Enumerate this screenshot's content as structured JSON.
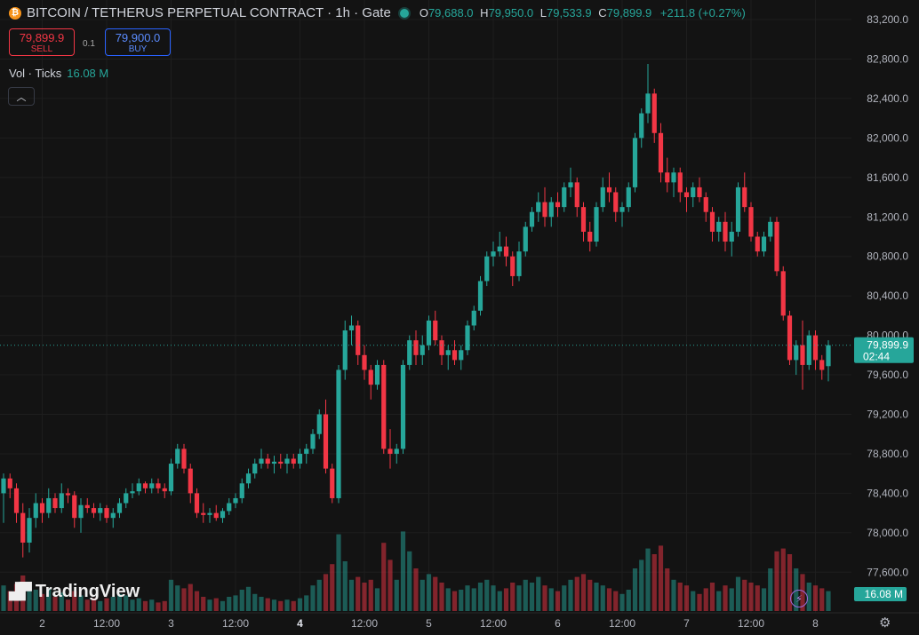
{
  "header": {
    "title": "BITCOIN / TETHERUS PERPETUAL CONTRACT · 1h · Gate",
    "coin_icon": "bitcoin-icon",
    "o_label": "O",
    "o": "79,688.0",
    "h_label": "H",
    "h": "79,950.0",
    "l_label": "L",
    "l": "79,533.9",
    "c_label": "C",
    "c": "79,899.9",
    "change": "+211.8 (+0.27%)"
  },
  "trade": {
    "sell_price": "79,899.9",
    "sell_label": "SELL",
    "spread": "0.1",
    "buy_price": "79,900.0",
    "buy_label": "BUY"
  },
  "volume_legend": {
    "label": "Vol · Ticks",
    "value": "16.08 M"
  },
  "price_tag": {
    "price": "79,899.9",
    "countdown": "02:44"
  },
  "volume_tag": "16.08 M",
  "logo_text": "TradingView",
  "colors": {
    "up": "#26a69a",
    "down": "#f23645",
    "background": "#131313"
  },
  "chart_data": {
    "type": "candlestick",
    "interval": "1h",
    "yticks": [
      "83,200.0",
      "82,800.0",
      "82,400.0",
      "82,000.0",
      "81,600.0",
      "81,200.0",
      "80,800.0",
      "80,400.0",
      "80,000.0",
      "79,600.0",
      "79,200.0",
      "78,800.0",
      "78,400.0",
      "78,000.0",
      "77,600.0"
    ],
    "ylim": [
      77250,
      83350
    ],
    "xticks": [
      {
        "label": "2",
        "bold": false
      },
      {
        "label": "12:00",
        "bold": false
      },
      {
        "label": "3",
        "bold": false
      },
      {
        "label": "12:00",
        "bold": false
      },
      {
        "label": "4",
        "bold": true
      },
      {
        "label": "12:00",
        "bold": false
      },
      {
        "label": "5",
        "bold": false
      },
      {
        "label": "12:00",
        "bold": false
      },
      {
        "label": "6",
        "bold": false
      },
      {
        "label": "12:00",
        "bold": false
      },
      {
        "label": "7",
        "bold": false
      },
      {
        "label": "12:00",
        "bold": false
      },
      {
        "label": "8",
        "bold": false
      }
    ],
    "xtick_bar_index": [
      6,
      16,
      26,
      36,
      46,
      56,
      66,
      76,
      86,
      96,
      106,
      116,
      126
    ],
    "last_price": 79899.9,
    "candles": [
      [
        78400,
        78600,
        78100,
        78550,
        0.18
      ],
      [
        78550,
        78600,
        78350,
        78450,
        0.14
      ],
      [
        78450,
        78500,
        78100,
        78200,
        0.19
      ],
      [
        78200,
        78300,
        77750,
        77900,
        0.25
      ],
      [
        77900,
        78250,
        77800,
        78150,
        0.2
      ],
      [
        78150,
        78400,
        78050,
        78300,
        0.15
      ],
      [
        78300,
        78350,
        78100,
        78200,
        0.12
      ],
      [
        78200,
        78450,
        78150,
        78350,
        0.16
      ],
      [
        78350,
        78400,
        78200,
        78250,
        0.1
      ],
      [
        78250,
        78500,
        78200,
        78400,
        0.13
      ],
      [
        78400,
        78450,
        78300,
        78380,
        0.08
      ],
      [
        78380,
        78420,
        78050,
        78150,
        0.14
      ],
      [
        78150,
        78350,
        78000,
        78280,
        0.11
      ],
      [
        78280,
        78350,
        78200,
        78250,
        0.08
      ],
      [
        78250,
        78300,
        78150,
        78200,
        0.09
      ],
      [
        78200,
        78300,
        78120,
        78250,
        0.07
      ],
      [
        78250,
        78280,
        78100,
        78150,
        0.09
      ],
      [
        78150,
        78250,
        78050,
        78200,
        0.1
      ],
      [
        78200,
        78350,
        78150,
        78300,
        0.12
      ],
      [
        78300,
        78450,
        78250,
        78400,
        0.11
      ],
      [
        78400,
        78500,
        78350,
        78420,
        0.08
      ],
      [
        78420,
        78550,
        78380,
        78500,
        0.09
      ],
      [
        78500,
        78520,
        78400,
        78450,
        0.07
      ],
      [
        78450,
        78550,
        78400,
        78500,
        0.08
      ],
      [
        78500,
        78550,
        78400,
        78450,
        0.06
      ],
      [
        78450,
        78500,
        78350,
        78420,
        0.07
      ],
      [
        78420,
        78750,
        78380,
        78700,
        0.22
      ],
      [
        78700,
        78900,
        78650,
        78850,
        0.18
      ],
      [
        78850,
        78900,
        78600,
        78650,
        0.16
      ],
      [
        78650,
        78700,
        78300,
        78400,
        0.19
      ],
      [
        78400,
        78450,
        78150,
        78200,
        0.14
      ],
      [
        78200,
        78300,
        78100,
        78180,
        0.1
      ],
      [
        78180,
        78250,
        78100,
        78200,
        0.08
      ],
      [
        78200,
        78280,
        78120,
        78150,
        0.09
      ],
      [
        78150,
        78250,
        78100,
        78220,
        0.07
      ],
      [
        78220,
        78350,
        78180,
        78300,
        0.1
      ],
      [
        78300,
        78400,
        78250,
        78350,
        0.11
      ],
      [
        78350,
        78550,
        78300,
        78500,
        0.15
      ],
      [
        78500,
        78650,
        78450,
        78600,
        0.17
      ],
      [
        78600,
        78750,
        78550,
        78700,
        0.12
      ],
      [
        78700,
        78850,
        78650,
        78750,
        0.1
      ],
      [
        78750,
        78800,
        78650,
        78700,
        0.09
      ],
      [
        78700,
        78780,
        78600,
        78720,
        0.08
      ],
      [
        78720,
        78800,
        78650,
        78700,
        0.07
      ],
      [
        78700,
        78800,
        78600,
        78750,
        0.08
      ],
      [
        78750,
        78800,
        78650,
        78700,
        0.07
      ],
      [
        78700,
        78850,
        78650,
        78800,
        0.09
      ],
      [
        78800,
        78900,
        78700,
        78850,
        0.11
      ],
      [
        78850,
        79050,
        78800,
        79000,
        0.18
      ],
      [
        79000,
        79250,
        78950,
        79200,
        0.22
      ],
      [
        79200,
        79350,
        78600,
        78650,
        0.26
      ],
      [
        78650,
        78700,
        78300,
        78350,
        0.33
      ],
      [
        78350,
        79700,
        78300,
        79650,
        0.54
      ],
      [
        79650,
        80150,
        79550,
        80050,
        0.35
      ],
      [
        80050,
        80200,
        79900,
        80100,
        0.22
      ],
      [
        80100,
        80150,
        79700,
        79800,
        0.24
      ],
      [
        79800,
        79900,
        79550,
        79650,
        0.2
      ],
      [
        79650,
        79700,
        79350,
        79500,
        0.22
      ],
      [
        79500,
        79750,
        79450,
        79700,
        0.16
      ],
      [
        79700,
        79750,
        78800,
        78850,
        0.48
      ],
      [
        78850,
        79050,
        78650,
        78800,
        0.36
      ],
      [
        78800,
        78900,
        78700,
        78850,
        0.22
      ],
      [
        78850,
        79750,
        78800,
        79700,
        0.56
      ],
      [
        79700,
        80000,
        79650,
        79950,
        0.42
      ],
      [
        79950,
        80050,
        79700,
        79800,
        0.3
      ],
      [
        79800,
        80000,
        79700,
        79900,
        0.22
      ],
      [
        79900,
        80200,
        79850,
        80150,
        0.26
      ],
      [
        80150,
        80250,
        79900,
        79950,
        0.24
      ],
      [
        79950,
        80000,
        79700,
        79800,
        0.2
      ],
      [
        79800,
        79900,
        79650,
        79850,
        0.16
      ],
      [
        79850,
        79950,
        79700,
        79750,
        0.14
      ],
      [
        79750,
        79900,
        79650,
        79850,
        0.15
      ],
      [
        79850,
        80150,
        79800,
        80100,
        0.18
      ],
      [
        80100,
        80300,
        80050,
        80250,
        0.16
      ],
      [
        80250,
        80600,
        80200,
        80550,
        0.2
      ],
      [
        80550,
        80850,
        80500,
        80800,
        0.22
      ],
      [
        80800,
        80950,
        80700,
        80850,
        0.18
      ],
      [
        80850,
        81050,
        80800,
        80900,
        0.14
      ],
      [
        80900,
        81000,
        80700,
        80800,
        0.16
      ],
      [
        80800,
        80850,
        80500,
        80600,
        0.2
      ],
      [
        80600,
        80950,
        80550,
        80850,
        0.18
      ],
      [
        80850,
        81150,
        80800,
        81100,
        0.22
      ],
      [
        81100,
        81300,
        81050,
        81250,
        0.2
      ],
      [
        81250,
        81450,
        81150,
        81350,
        0.24
      ],
      [
        81350,
        81500,
        81100,
        81200,
        0.18
      ],
      [
        81200,
        81400,
        81100,
        81350,
        0.16
      ],
      [
        81350,
        81450,
        81200,
        81300,
        0.14
      ],
      [
        81300,
        81550,
        81250,
        81500,
        0.18
      ],
      [
        81500,
        81700,
        81400,
        81550,
        0.22
      ],
      [
        81550,
        81600,
        81200,
        81300,
        0.24
      ],
      [
        81300,
        81350,
        80950,
        81050,
        0.26
      ],
      [
        81050,
        81150,
        80850,
        80950,
        0.22
      ],
      [
        80950,
        81350,
        80900,
        81300,
        0.2
      ],
      [
        81300,
        81600,
        81250,
        81500,
        0.18
      ],
      [
        81500,
        81650,
        81350,
        81450,
        0.16
      ],
      [
        81450,
        81500,
        81150,
        81250,
        0.14
      ],
      [
        81250,
        81350,
        81100,
        81300,
        0.12
      ],
      [
        81300,
        81550,
        81250,
        81500,
        0.15
      ],
      [
        81500,
        82050,
        81450,
        82000,
        0.3
      ],
      [
        82000,
        82300,
        81900,
        82250,
        0.36
      ],
      [
        82250,
        82750,
        82150,
        82450,
        0.44
      ],
      [
        82450,
        82500,
        81950,
        82050,
        0.4
      ],
      [
        82050,
        82150,
        81550,
        81650,
        0.46
      ],
      [
        81650,
        81800,
        81450,
        81550,
        0.3
      ],
      [
        81550,
        81700,
        81400,
        81650,
        0.22
      ],
      [
        81650,
        81700,
        81350,
        81450,
        0.2
      ],
      [
        81450,
        81500,
        81250,
        81400,
        0.18
      ],
      [
        81400,
        81550,
        81300,
        81500,
        0.14
      ],
      [
        81500,
        81600,
        81350,
        81400,
        0.12
      ],
      [
        81400,
        81450,
        81150,
        81250,
        0.16
      ],
      [
        81250,
        81300,
        80950,
        81050,
        0.2
      ],
      [
        81050,
        81200,
        80950,
        81150,
        0.14
      ],
      [
        81150,
        81250,
        80850,
        80950,
        0.18
      ],
      [
        80950,
        81150,
        80800,
        81050,
        0.16
      ],
      [
        81050,
        81550,
        81000,
        81500,
        0.24
      ],
      [
        81500,
        81650,
        81250,
        81300,
        0.22
      ],
      [
        81300,
        81350,
        80950,
        81000,
        0.2
      ],
      [
        81000,
        81050,
        80800,
        80850,
        0.18
      ],
      [
        80850,
        81050,
        80800,
        81000,
        0.16
      ],
      [
        81000,
        81200,
        80950,
        81150,
        0.3
      ],
      [
        81150,
        81200,
        80600,
        80650,
        0.42
      ],
      [
        80650,
        80700,
        80150,
        80200,
        0.44
      ],
      [
        80200,
        80250,
        79700,
        79750,
        0.4
      ],
      [
        79750,
        79950,
        79600,
        79900,
        0.3
      ],
      [
        79900,
        80150,
        79450,
        79700,
        0.26
      ],
      [
        79700,
        80050,
        79650,
        80000,
        0.2
      ],
      [
        80000,
        80050,
        79650,
        79750,
        0.18
      ],
      [
        79750,
        79800,
        79550,
        79650,
        0.16
      ],
      [
        79688,
        79950,
        79534,
        79900,
        0.14
      ]
    ]
  }
}
